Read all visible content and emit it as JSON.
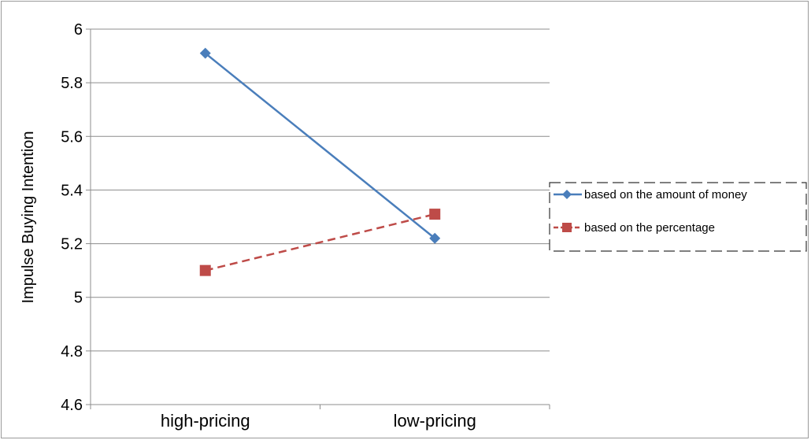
{
  "chart_data": {
    "type": "line",
    "categories": [
      "high-pricing",
      "low-pricing"
    ],
    "series": [
      {
        "name": "based on the amount of money",
        "values": [
          5.91,
          5.22
        ],
        "color": "#4a7ebb",
        "marker": "diamond",
        "dash": "solid"
      },
      {
        "name": "based on the percentage",
        "values": [
          5.1,
          5.31
        ],
        "color": "#be4b48",
        "marker": "square",
        "dash": "dashed"
      }
    ],
    "title": "",
    "xlabel": "",
    "ylabel": "Impulse Buying Intention",
    "ylim": [
      4.6,
      6
    ],
    "yticks": [
      "4.6",
      "4.8",
      "5",
      "5.2",
      "5.4",
      "5.6",
      "5.8",
      "6"
    ],
    "grid": true,
    "legend_position": "right"
  }
}
